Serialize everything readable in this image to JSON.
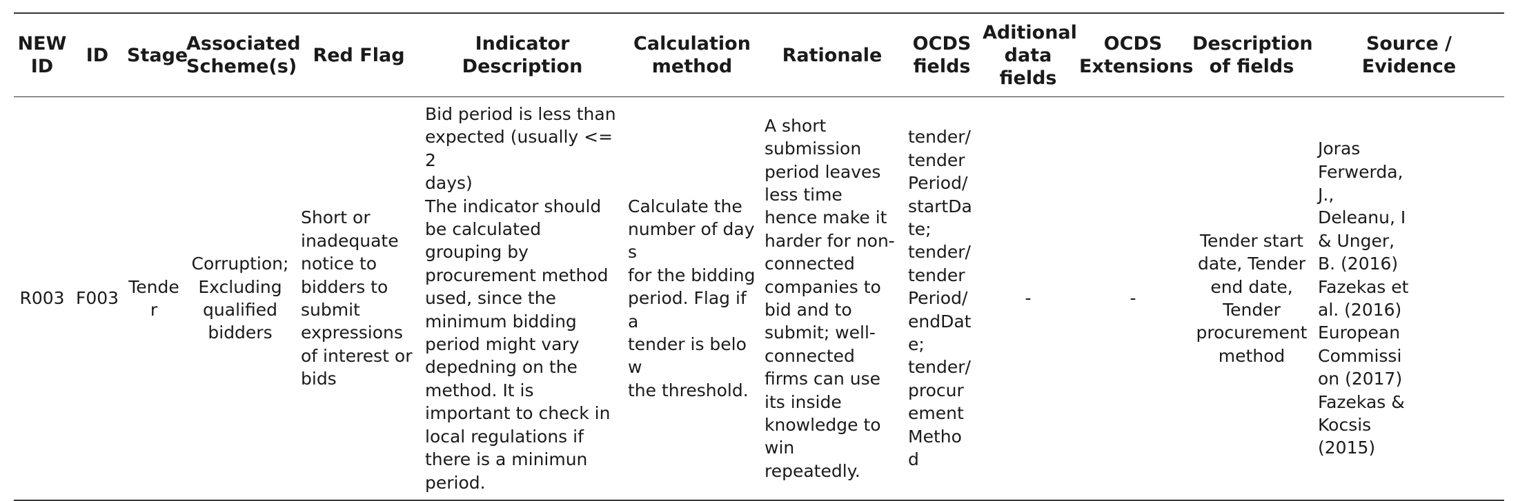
{
  "table": {
    "headers": [
      "NEW\nID",
      "ID",
      "Stage",
      "Associated\nScheme(s)",
      "Red Flag",
      "Indicator\nDescription",
      "Calculation\nmethod",
      "Rationale",
      "OCDS\nfields",
      "Aditional\ndata\nfields",
      "OCDS\nExtensions",
      "Description\nof fields",
      "Source /\nEvidence"
    ],
    "row": {
      "new_id": "R003",
      "id": "F003",
      "stage": "Tender",
      "scheme": "Corruption;\nExcluding\nqualified\nbidders",
      "red_flag": "Short or\ninadequate\nnotice to\nbidders to\nsubmit\nexpressions\nof interest or\nbids",
      "indicator_description": "Bid period is less than\nexpected (usually <=2\ndays)\nThe indicator should\nbe calculated\ngrouping by\nprocurement method\nused, since the\nminimum bidding\nperiod might vary\ndepedning on the\nmethod. It is\nimportant to check in\nlocal regulations if\nthere is a minimun\nperiod.",
      "calculation_method": "Calculate the\nnumber of days\nfor the bidding\nperiod. Flag if a\ntender is below\nthe threshold.",
      "rationale": "A short\nsubmission\nperiod leaves\nless time\nhence make it\nharder for non-\nconnected\ncompanies to\nbid and to\nsubmit; well-\nconnected\nfirms can use\nits inside\nknowledge to\nwin\nrepeatedly.",
      "ocds_fields": "tender/\ntender\nPeriod/\nstartDa\nte;\ntender/\ntender\nPeriod/\nendDat\ne;\ntender/\nprocur\nement\nMetho\nd",
      "additional_data_fields": "-",
      "ocds_extensions": "-",
      "description_of_fields": "Tender start\ndate, Tender\nend date,\nTender\nprocurement\nmethod",
      "source_evidence": "Joras\nFerwerda,\nJ.,\nDeleanu, I\n& Unger,\nB. (2016)\nFazekas et\nal. (2016)\nEuropean\nCommissi\non (2017)\nFazekas &\nKocsis\n(2015)"
    }
  }
}
